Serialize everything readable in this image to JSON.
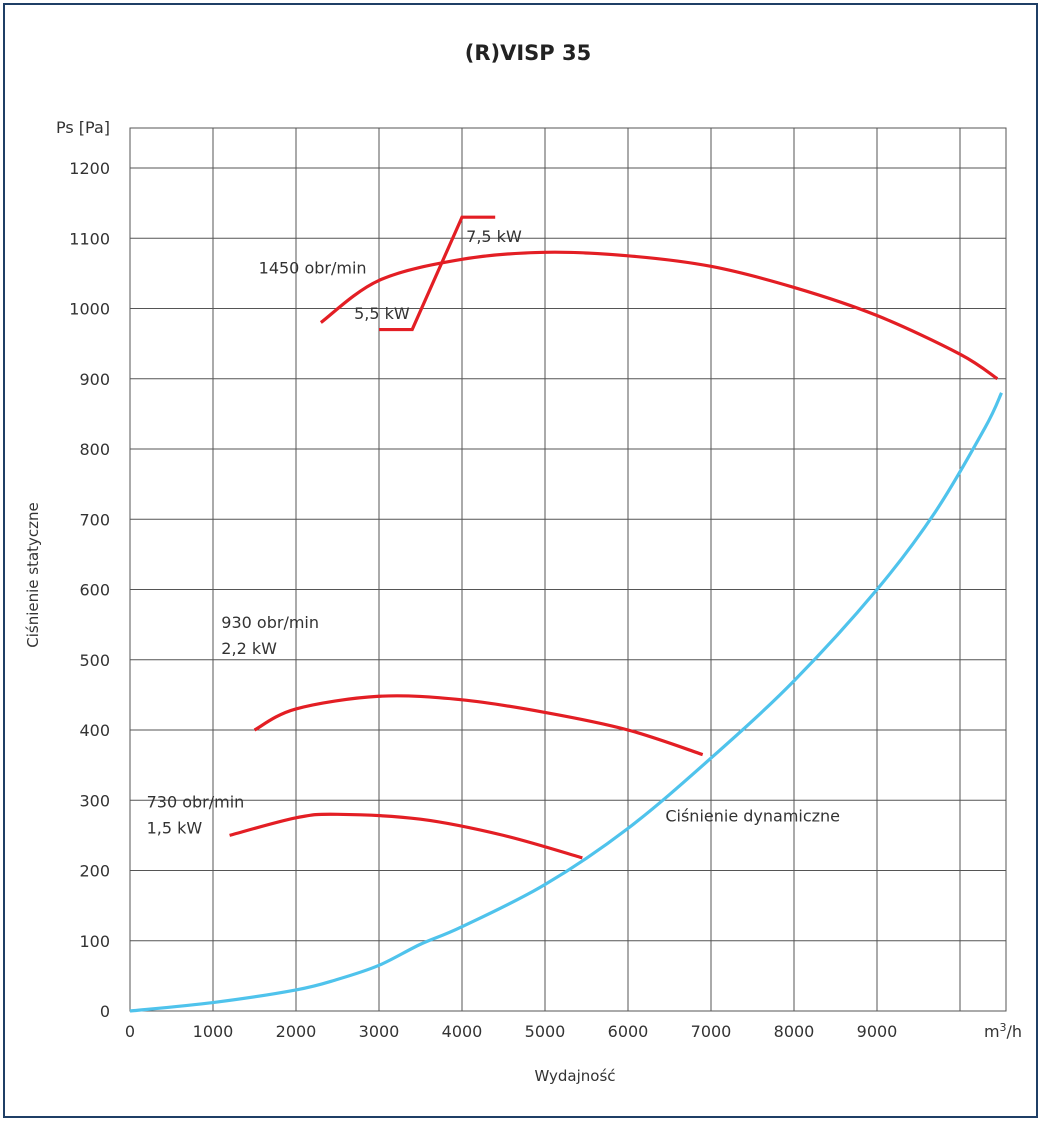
{
  "chart_data": {
    "type": "line",
    "title": "(R)VISP 35",
    "xlabel": "Wydajność",
    "ylabel": "Ciśnienie statyczne",
    "x_unit_label": "m3/h",
    "x_unit_base": "m",
    "x_unit_sup": "3",
    "x_unit_tail": "/h",
    "y_unit_label": "Ps [Pa]",
    "xlim": [
      0,
      10500
    ],
    "ylim": [
      0,
      1200
    ],
    "x_ticks": [
      0,
      1000,
      2000,
      3000,
      4000,
      5000,
      6000,
      7000,
      8000,
      9000
    ],
    "y_ticks": [
      0,
      100,
      200,
      300,
      400,
      500,
      600,
      700,
      800,
      900,
      1000,
      1100,
      1200
    ],
    "grid": true,
    "colors": {
      "fan_curves": "#e31e24",
      "dynamic_pressure": "#4fc3ec",
      "frame": "#1f3f66"
    },
    "series": [
      {
        "name": "1450 obr/min",
        "color": "#e31e24",
        "x": [
          2300,
          3000,
          4000,
          5000,
          6000,
          7000,
          8000,
          9000,
          10000,
          10450
        ],
        "y": [
          980,
          1040,
          1070,
          1080,
          1075,
          1060,
          1030,
          990,
          935,
          900
        ]
      },
      {
        "name": "930 obr/min 2,2 kW",
        "color": "#e31e24",
        "x": [
          1500,
          2000,
          3000,
          4000,
          5000,
          6000,
          6900
        ],
        "y": [
          400,
          430,
          448,
          443,
          425,
          400,
          365
        ]
      },
      {
        "name": "730 obr/min 1,5 kW",
        "color": "#e31e24",
        "x": [
          1200,
          2000,
          2500,
          3500,
          4500,
          5450
        ],
        "y": [
          250,
          275,
          280,
          273,
          250,
          218
        ]
      },
      {
        "name": "Ciśnienie dynamiczne",
        "color": "#4fc3ec",
        "x": [
          0,
          1000,
          2000,
          2500,
          3000,
          3500,
          4000,
          5000,
          6000,
          7000,
          8000,
          9000,
          9700,
          10300,
          10500
        ],
        "y": [
          0,
          12,
          30,
          45,
          65,
          95,
          120,
          180,
          260,
          360,
          470,
          600,
          710,
          830,
          880
        ]
      },
      {
        "name": "power-limit",
        "color": "#e31e24",
        "x": [
          3000,
          3400,
          4000,
          4400
        ],
        "y": [
          970,
          970,
          1130,
          1130
        ]
      }
    ],
    "annotations": [
      {
        "id": "rpm-1450",
        "text": "1450 obr/min",
        "x": 1550,
        "y": 1050
      },
      {
        "id": "kw-5-5",
        "text": "5,5 kW",
        "x": 2700,
        "y": 985
      },
      {
        "id": "kw-7-5",
        "text": "7,5 kW",
        "x": 4050,
        "y": 1095
      },
      {
        "id": "rpm-930",
        "text": "930 obr/min",
        "x": 1100,
        "y": 545
      },
      {
        "id": "kw-2-2",
        "text": "2,2 kW",
        "x": 1100,
        "y": 508
      },
      {
        "id": "rpm-730",
        "text": "730 obr/min",
        "x": 200,
        "y": 290
      },
      {
        "id": "kw-1-5",
        "text": "1,5 kW",
        "x": 200,
        "y": 253
      },
      {
        "id": "dyn-pressure",
        "text": "Ciśnienie dynamiczne",
        "x": 6450,
        "y": 270
      }
    ]
  }
}
